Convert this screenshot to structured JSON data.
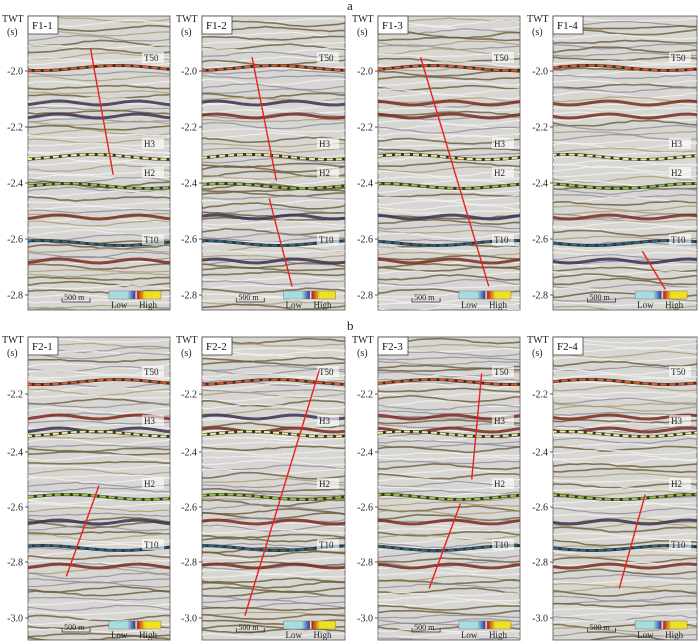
{
  "rows": [
    {
      "label": "a",
      "axis_title": [
        "TWT",
        "(s)"
      ],
      "ticks": [
        "-2.0",
        "-2.2",
        "-2.4",
        "-2.6",
        "-2.8"
      ],
      "panels": [
        "F1-1",
        "F1-2",
        "F1-3",
        "F1-4"
      ]
    },
    {
      "label": "b",
      "axis_title": [
        "TWT",
        "(s)"
      ],
      "ticks": [
        "-2.2",
        "-2.4",
        "-2.6",
        "-2.8",
        "-3.0"
      ],
      "panels": [
        "F2-1",
        "F2-2",
        "F2-3",
        "F2-4"
      ]
    }
  ],
  "horizons": [
    {
      "name": "T50",
      "color": "#f05a1e"
    },
    {
      "name": "H3",
      "color": "#f2ec8a"
    },
    {
      "name": "H2",
      "color": "#9cc83c"
    },
    {
      "name": "T10",
      "color": "#2a6a8a"
    }
  ],
  "fault_color": "#e8201e",
  "scale_bar": "500 m",
  "colorbar": {
    "low": "Low",
    "high": "High",
    "colors": [
      "#a8dde0",
      "#3040a0",
      "#c02010",
      "#f0e020"
    ]
  }
}
